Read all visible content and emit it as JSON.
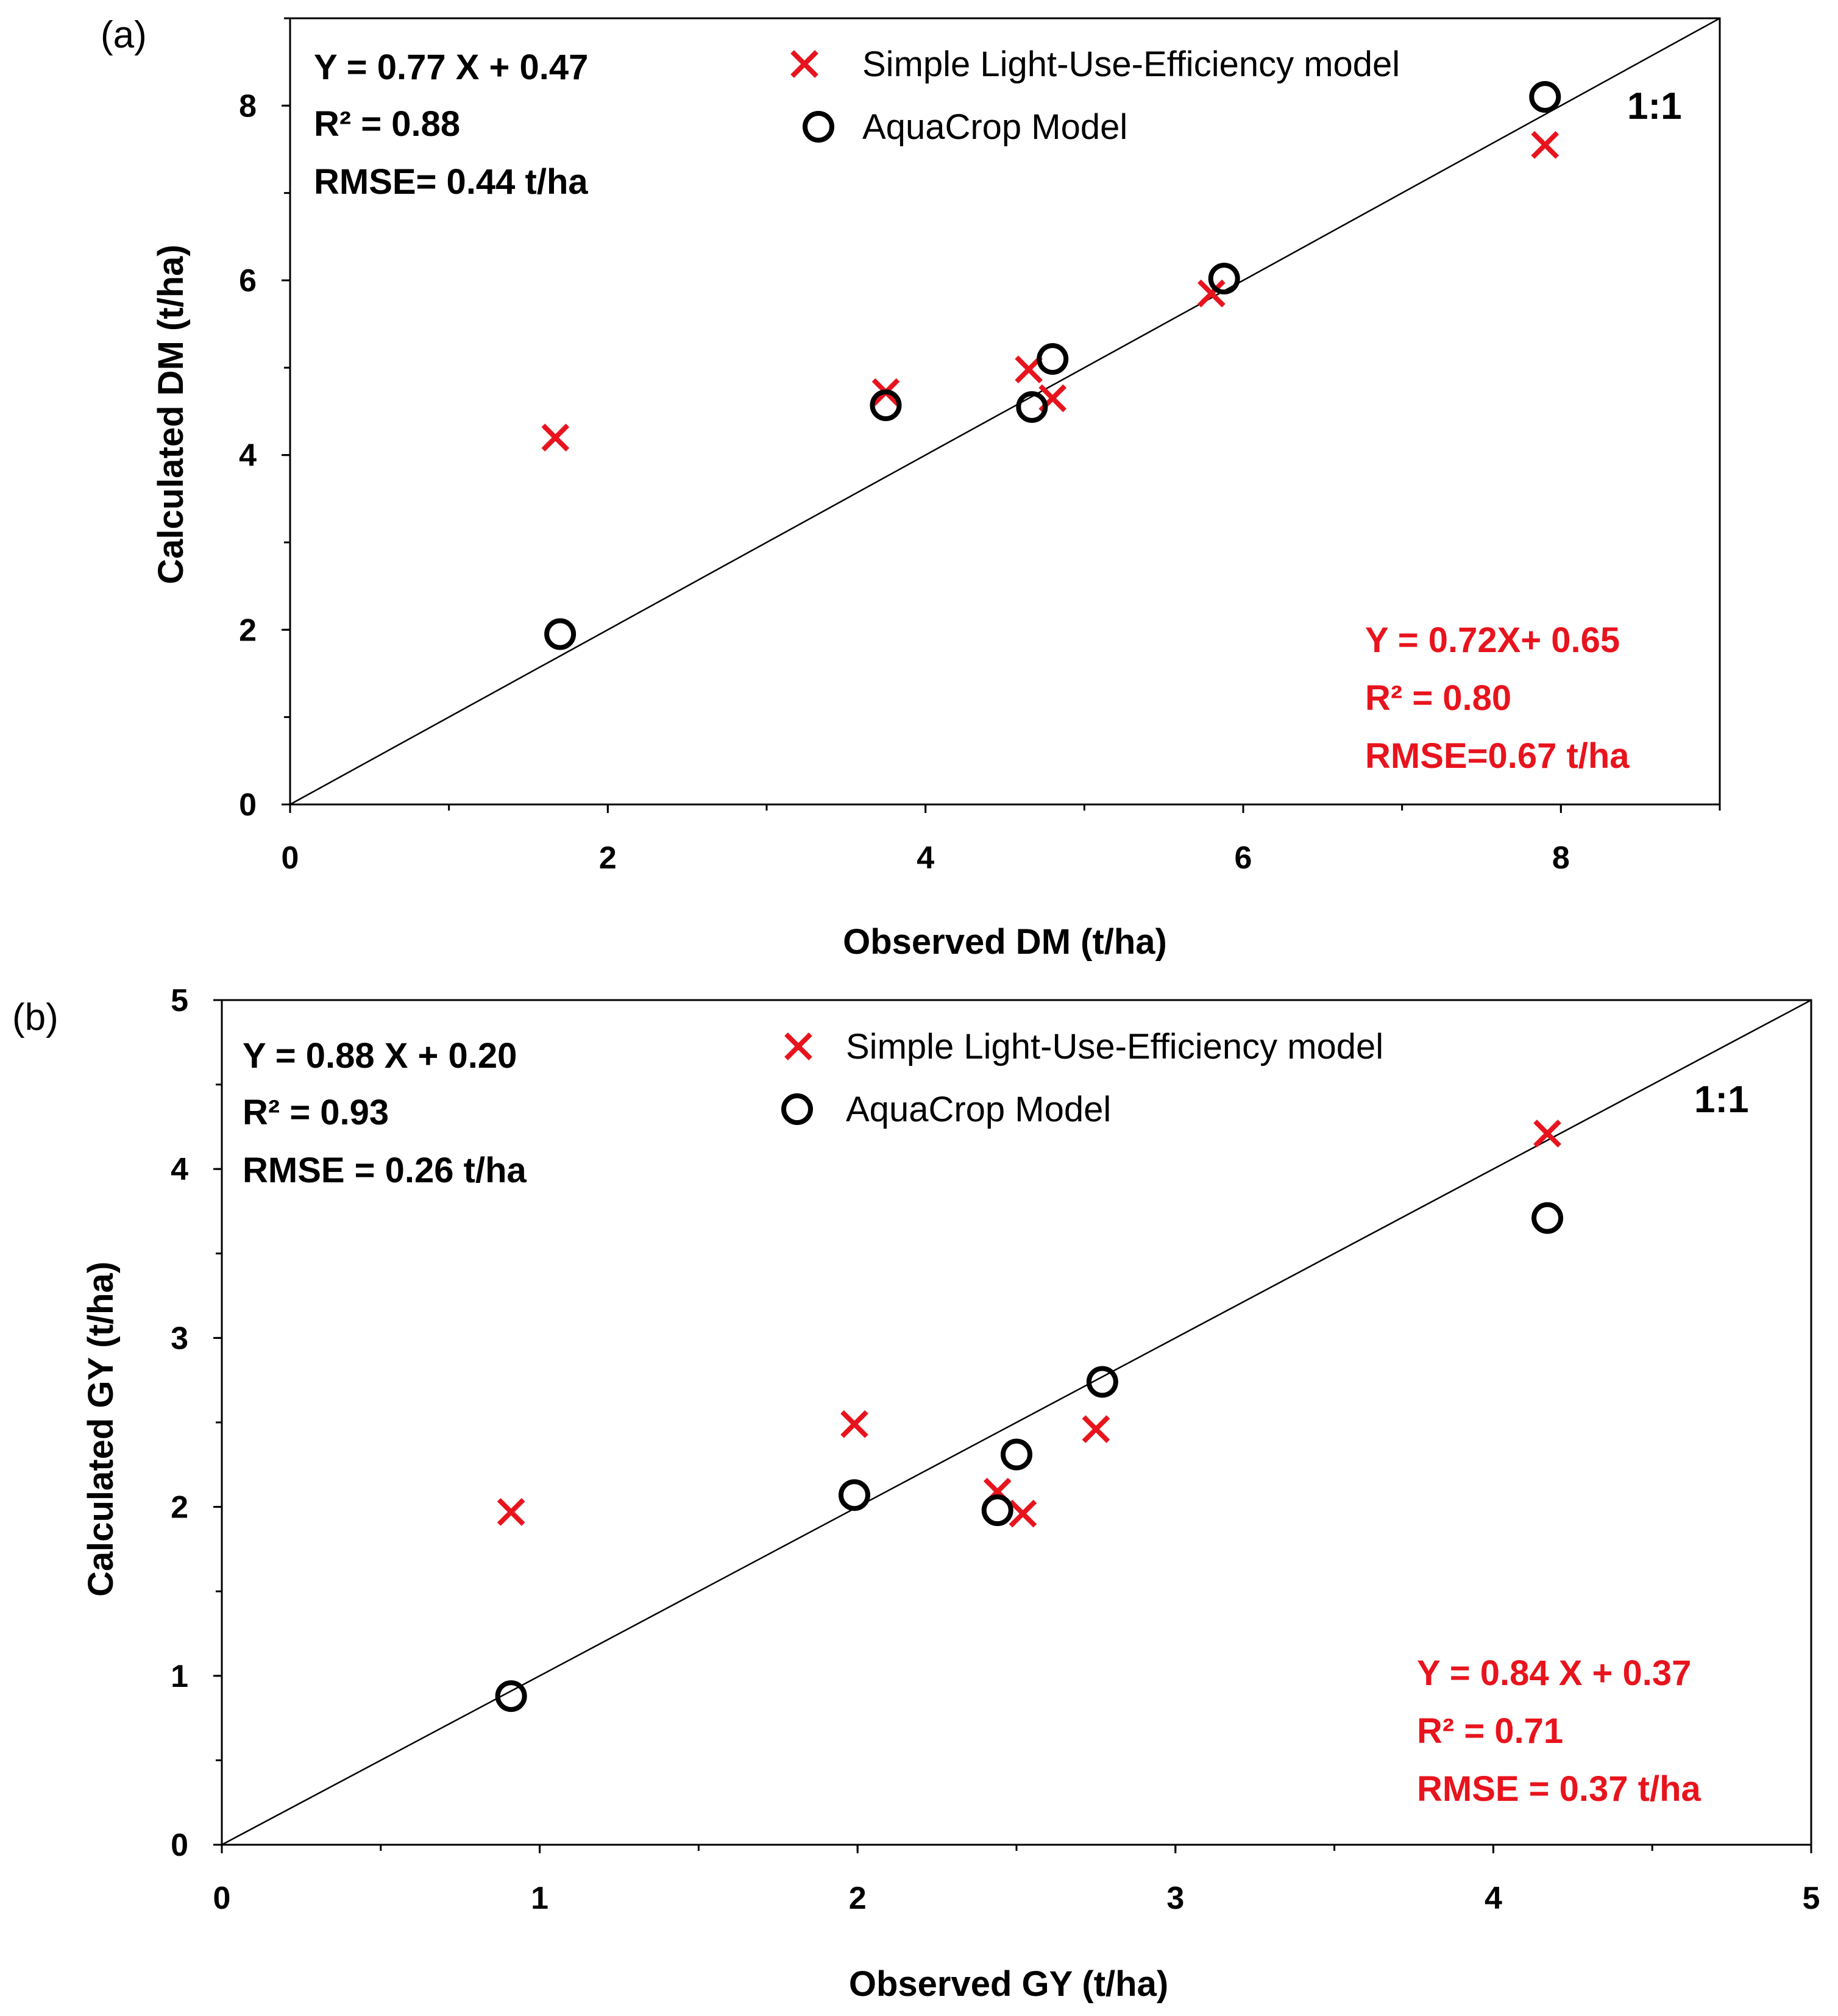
{
  "colors": {
    "red": "#e8141d",
    "black": "#000000"
  },
  "legend": {
    "lue": "Simple Light-Use-Efficiency model",
    "aquacrop": "AquaCrop Model"
  },
  "one_to_one_label": "1:1",
  "chart_data": [
    {
      "type": "scatter",
      "panel_label": "(a)",
      "xlabel": "Observed DM (t/ha)",
      "ylabel": "Calculated DM (t/ha)",
      "xlim": [
        0,
        9
      ],
      "ylim": [
        0,
        9
      ],
      "x_ticks": [
        0,
        2,
        4,
        6,
        8
      ],
      "y_ticks": [
        0,
        2,
        4,
        6,
        8
      ],
      "minor_step": 1,
      "identity_line": "1:1",
      "series": [
        {
          "name": "Simple Light-Use-Efficiency model",
          "marker": "x",
          "points": [
            [
              1.67,
              4.2
            ],
            [
              3.75,
              4.72
            ],
            [
              4.65,
              4.98
            ],
            [
              4.8,
              4.65
            ],
            [
              5.8,
              5.85
            ],
            [
              7.9,
              7.55
            ]
          ]
        },
        {
          "name": "AquaCrop Model",
          "marker": "circle",
          "points": [
            [
              1.7,
              1.95
            ],
            [
              3.75,
              4.57
            ],
            [
              4.67,
              4.55
            ],
            [
              4.8,
              5.1
            ],
            [
              5.88,
              6.02
            ],
            [
              7.9,
              8.1
            ]
          ]
        }
      ],
      "stats_black": [
        "Y = 0.77 X + 0.47",
        "R² = 0.88",
        "RMSE= 0.44 t/ha"
      ],
      "stats_red": [
        "Y = 0.72X+ 0.65",
        "R² = 0.80",
        "RMSE=0.67 t/ha"
      ]
    },
    {
      "type": "scatter",
      "panel_label": "(b)",
      "xlabel": "Observed GY (t/ha)",
      "ylabel": "Calculated GY (t/ha)",
      "xlim": [
        0,
        5
      ],
      "ylim": [
        0,
        5
      ],
      "x_ticks": [
        0,
        1,
        2,
        3,
        4,
        5
      ],
      "y_ticks": [
        0,
        1,
        2,
        3,
        4,
        5
      ],
      "minor_step": 0.5,
      "identity_line": "1:1",
      "series": [
        {
          "name": "Simple Light-Use-Efficiency model",
          "marker": "x",
          "points": [
            [
              0.91,
              1.97
            ],
            [
              1.99,
              2.49
            ],
            [
              2.44,
              2.09
            ],
            [
              2.52,
              1.96
            ],
            [
              2.75,
              2.46
            ],
            [
              4.17,
              4.21
            ]
          ]
        },
        {
          "name": "AquaCrop Model",
          "marker": "circle",
          "points": [
            [
              0.91,
              0.88
            ],
            [
              1.99,
              2.07
            ],
            [
              2.44,
              1.98
            ],
            [
              2.5,
              2.31
            ],
            [
              2.77,
              2.74
            ],
            [
              4.17,
              3.71
            ]
          ]
        }
      ],
      "stats_black": [
        "Y = 0.88 X + 0.20",
        "R² = 0.93",
        "RMSE = 0.26 t/ha"
      ],
      "stats_red": [
        "Y = 0.84 X + 0.37",
        "R² = 0.71",
        "RMSE = 0.37 t/ha"
      ]
    }
  ]
}
